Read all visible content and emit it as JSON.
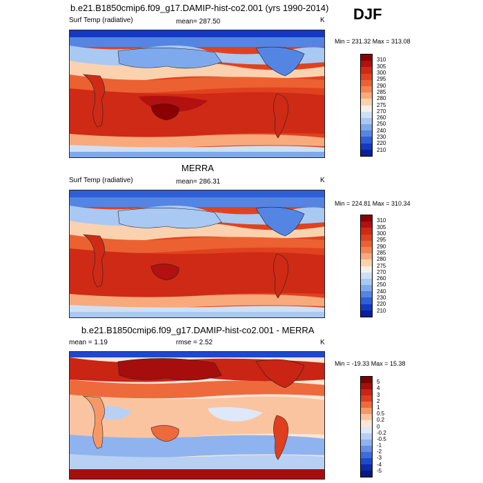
{
  "season": "DJF",
  "panels": [
    {
      "title": "b.e21.B1850cmip6.f09_g17.DAMIP-hist-co2.001 (yrs 1990-2014)",
      "left_label": "Surf Temp (radiative)",
      "center_label": "mean= 287.50",
      "units": "K",
      "minmax": "Min = 231.32 Max = 313.08",
      "colorbar_labels": [
        "310",
        "305",
        "300",
        "295",
        "290",
        "285",
        "280",
        "275",
        "270",
        "260",
        "250",
        "240",
        "230",
        "220",
        "210"
      ],
      "colorbar_colors": [
        "#8b0000",
        "#b31010",
        "#cf2a15",
        "#e0421f",
        "#ec6131",
        "#f4844f",
        "#f8aa7c",
        "#fbd2b0",
        "#f4f0ea",
        "#cfe0f6",
        "#a9c8f2",
        "#7ea9ec",
        "#5585e3",
        "#2e5fd6",
        "#1438c2",
        "#0a1e9c"
      ]
    },
    {
      "title": "MERRA",
      "left_label": "Surf Temp (radiative)",
      "center_label": "mean= 286.31",
      "units": "K",
      "minmax": "Min = 224.81 Max = 310.34",
      "colorbar_labels": [
        "310",
        "305",
        "300",
        "295",
        "290",
        "285",
        "280",
        "275",
        "270",
        "260",
        "250",
        "240",
        "230",
        "220",
        "210"
      ],
      "colorbar_colors": [
        "#8b0000",
        "#b31010",
        "#cf2a15",
        "#e0421f",
        "#ec6131",
        "#f4844f",
        "#f8aa7c",
        "#fbd2b0",
        "#f4f0ea",
        "#cfe0f6",
        "#a9c8f2",
        "#7ea9ec",
        "#5585e3",
        "#2e5fd6",
        "#1438c2",
        "#0a1e9c"
      ]
    },
    {
      "title": "b.e21.B1850cmip6.f09_g17.DAMIP-hist-co2.001 - MERRA",
      "left_label": "mean =   1.19",
      "center_label": "rmse =   2.52",
      "units": "K",
      "minmax": "Min = -19.33 Max =  15.38",
      "colorbar_labels": [
        "5",
        "4",
        "3",
        "2",
        "1",
        "0.5",
        "0.2",
        "0",
        "-0.2",
        "-0.5",
        "-1",
        "-2",
        "-3",
        "-4",
        "-5"
      ],
      "colorbar_colors": [
        "#7a0000",
        "#a60d0d",
        "#c92414",
        "#df3f1e",
        "#ee6a3c",
        "#f69866",
        "#fbc4a0",
        "#fde6d6",
        "#dde8f8",
        "#b7d0f4",
        "#8fb3ee",
        "#6690e6",
        "#3d6ddc",
        "#1f49cc",
        "#0d2aae",
        "#081a80"
      ]
    }
  ]
}
